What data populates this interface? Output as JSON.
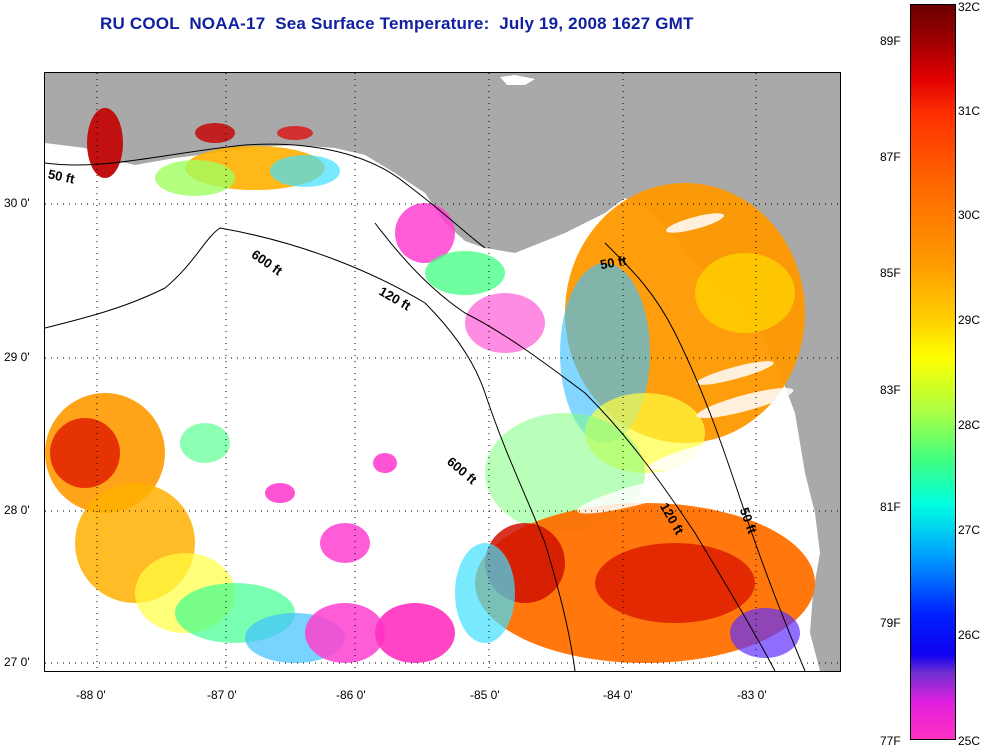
{
  "title": "RU COOL  NOAA-17  Sea Surface Temperature:  July 19, 2008 1627 GMT",
  "latitude_labels": [
    "30 0'",
    "29 0'",
    "28 0'",
    "27 0'"
  ],
  "longitude_labels": [
    "-88 0'",
    "-87 0'",
    "-86 0'",
    "-85 0'",
    "-84 0'",
    "-83 0'"
  ],
  "contour_labels": [
    "50 ft",
    "600 ft",
    "120 ft",
    "50 ft",
    "600 ft",
    "120 ft",
    "50 ft"
  ],
  "colorbar": {
    "celsius_labels": [
      "32C",
      "31C",
      "30C",
      "29C",
      "28C",
      "27C",
      "26C",
      "25C"
    ],
    "fahrenheit_labels": [
      "89F",
      "87F",
      "85F",
      "83F",
      "81F",
      "79F",
      "77F"
    ]
  },
  "colors": {
    "land": "#a9a9a9",
    "title": "#1020a0",
    "clouds": "#ffffff"
  }
}
